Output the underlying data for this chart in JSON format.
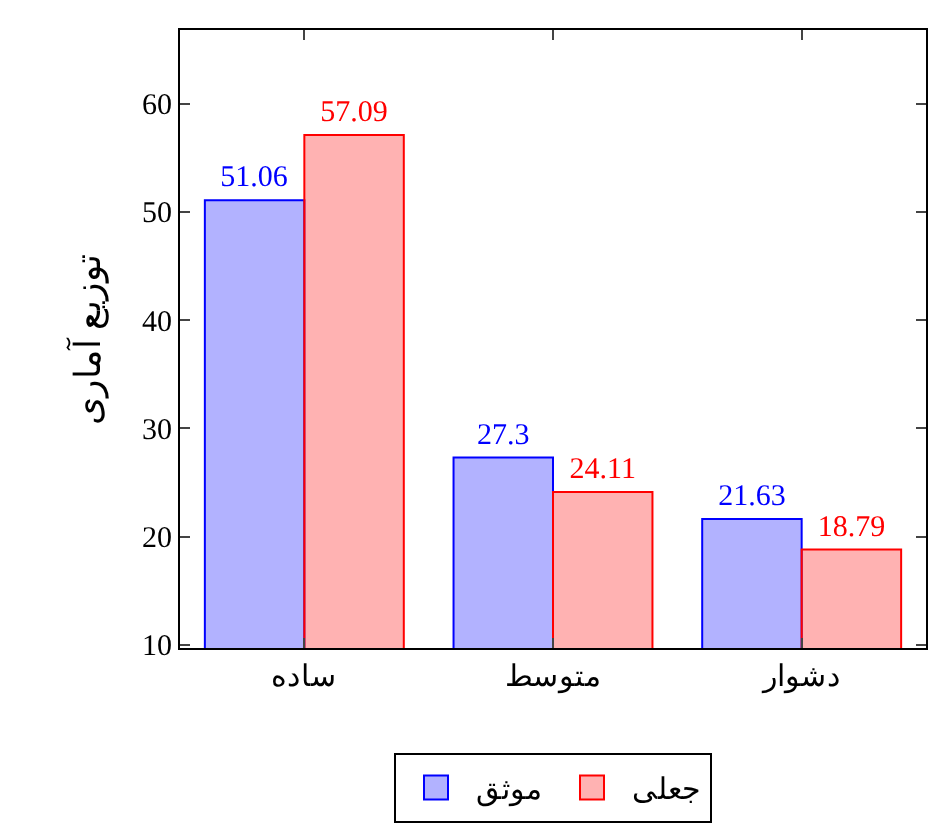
{
  "chart_data": {
    "type": "bar",
    "ylabel": "توزیع آماری",
    "categories": [
      "ساده",
      "متوسط",
      "دشوار"
    ],
    "series": [
      {
        "name": "موثق",
        "color": "#0000ff",
        "values": [
          51.06,
          27.3,
          21.63
        ]
      },
      {
        "name": "جعلی",
        "color": "#ff0000",
        "values": [
          57.09,
          24.11,
          18.79
        ]
      }
    ],
    "ylim": [
      9.7,
      66.8
    ],
    "yticks": [
      10,
      20,
      30,
      40,
      50,
      60
    ],
    "legend": "bottom",
    "data_labels": true
  }
}
